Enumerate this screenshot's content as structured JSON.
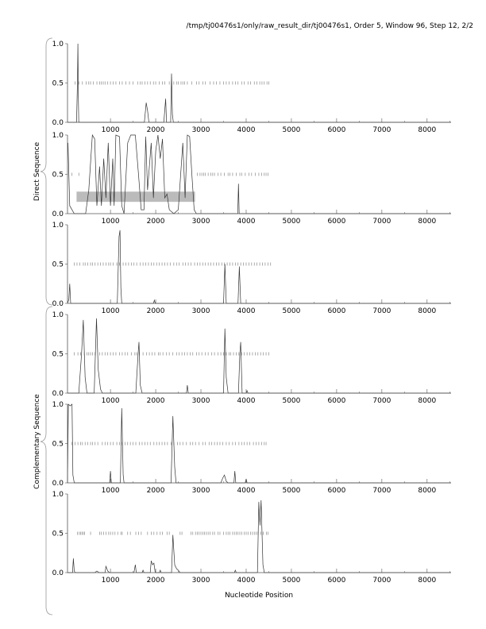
{
  "title": "/tmp/tj00476s1/only/raw_result_dir/tj00476s1, Order 5, Window 96, Step 12, 2/2",
  "xlabel": "Nucleotide Position",
  "group_labels": {
    "direct": "Direct Sequence",
    "complementary": "Complementary Sequence"
  },
  "chart_data": {
    "type": "line",
    "xlim": [
      50,
      8530
    ],
    "ylim": [
      0,
      1
    ],
    "xticks": [
      1000,
      2000,
      3000,
      4000,
      5000,
      6000,
      7000,
      8000
    ],
    "xtick_labels": [
      "1000",
      "2000",
      "3000",
      "4000",
      "5000",
      "6000",
      "7000",
      "8000"
    ],
    "yticks": [
      0,
      0.5,
      1
    ],
    "ytick_labels": [
      "0.0",
      "0.5",
      "1.0"
    ],
    "colors": {
      "line": "#333333",
      "ticks": "#888888",
      "band": "#bbbbbb",
      "axis": "#555555"
    },
    "panels": [
      {
        "group": "direct",
        "points": [
          [
            50,
            0
          ],
          [
            250,
            0
          ],
          [
            270,
            0.5
          ],
          [
            280,
            1.0
          ],
          [
            290,
            0.3
          ],
          [
            300,
            0
          ],
          [
            1750,
            0
          ],
          [
            1790,
            0.25
          ],
          [
            1820,
            0.15
          ],
          [
            1850,
            0
          ],
          [
            2180,
            0
          ],
          [
            2220,
            0.3
          ],
          [
            2240,
            0
          ],
          [
            2330,
            0
          ],
          [
            2350,
            0.62
          ],
          [
            2370,
            0.1
          ],
          [
            2390,
            0
          ],
          [
            8530,
            0
          ]
        ],
        "stops": [
          220,
          300,
          380,
          460,
          520,
          560,
          620,
          700,
          760,
          800,
          840,
          880,
          940,
          1000,
          1060,
          1120,
          1200,
          1260,
          1340,
          1420,
          1500,
          1600,
          1660,
          1700,
          1760,
          1820,
          1880,
          1950,
          2000,
          2080,
          2150,
          2200,
          2300,
          2400,
          2460,
          2500,
          2560,
          2600,
          2640,
          2700,
          2800,
          2900,
          2960,
          3040,
          3100,
          3200,
          3280,
          3340,
          3420,
          3500,
          3560,
          3620,
          3700,
          3760,
          3820,
          3900,
          3960,
          4040,
          4100,
          4180,
          4240,
          4300,
          4350,
          4400,
          4460,
          4500
        ]
      },
      {
        "group": "direct",
        "points": [
          [
            60,
            0.9
          ],
          [
            100,
            0.1
          ],
          [
            200,
            0
          ],
          [
            450,
            0
          ],
          [
            520,
            0.3
          ],
          [
            600,
            1.0
          ],
          [
            650,
            0.95
          ],
          [
            700,
            0.1
          ],
          [
            760,
            0.6
          ],
          [
            800,
            0.1
          ],
          [
            850,
            0.7
          ],
          [
            900,
            0.2
          ],
          [
            950,
            0.9
          ],
          [
            1000,
            0.1
          ],
          [
            1050,
            0.7
          ],
          [
            1080,
            0.1
          ],
          [
            1120,
            1.0
          ],
          [
            1200,
            0.98
          ],
          [
            1250,
            0.1
          ],
          [
            1300,
            0
          ],
          [
            1380,
            0.9
          ],
          [
            1450,
            1.0
          ],
          [
            1550,
            1.0
          ],
          [
            1620,
            0.5
          ],
          [
            1680,
            0.05
          ],
          [
            1740,
            0.05
          ],
          [
            1780,
            0.98
          ],
          [
            1820,
            0.3
          ],
          [
            1900,
            0.9
          ],
          [
            1950,
            0.2
          ],
          [
            2000,
            0.8
          ],
          [
            2050,
            1.0
          ],
          [
            2100,
            0.7
          ],
          [
            2150,
            0.95
          ],
          [
            2200,
            0.2
          ],
          [
            2250,
            0.25
          ],
          [
            2300,
            0.05
          ],
          [
            2400,
            0
          ],
          [
            2500,
            0.05
          ],
          [
            2600,
            0.9
          ],
          [
            2650,
            0.2
          ],
          [
            2700,
            1.0
          ],
          [
            2750,
            0.98
          ],
          [
            2800,
            0.5
          ],
          [
            2850,
            0.05
          ],
          [
            2900,
            0
          ],
          [
            3815,
            0
          ],
          [
            3830,
            0.38
          ],
          [
            3845,
            0
          ],
          [
            8530,
            0
          ]
        ],
        "band": [
          250,
          2870,
          0.15,
          0.28
        ],
        "stops": [
          150,
          300,
          2920,
          2980,
          3020,
          3060,
          3100,
          3160,
          3220,
          3260,
          3300,
          3380,
          3440,
          3520,
          3600,
          3640,
          3700,
          3780,
          3860,
          3900,
          3980,
          4060,
          4120,
          4200,
          4280,
          4340,
          4400,
          4440,
          4480
        ]
      },
      {
        "group": "direct",
        "points": [
          [
            50,
            0
          ],
          [
            80,
            0.05
          ],
          [
            100,
            0.25
          ],
          [
            120,
            0
          ],
          [
            1150,
            0
          ],
          [
            1190,
            0.85
          ],
          [
            1210,
            0.93
          ],
          [
            1230,
            0.2
          ],
          [
            1250,
            0
          ],
          [
            1950,
            0
          ],
          [
            1970,
            0.04
          ],
          [
            1990,
            0
          ],
          [
            3500,
            0
          ],
          [
            3530,
            0.5
          ],
          [
            3560,
            0
          ],
          [
            3820,
            0
          ],
          [
            3850,
            0.47
          ],
          [
            3880,
            0
          ],
          [
            8530,
            0
          ]
        ],
        "stops": [
          200,
          260,
          320,
          400,
          440,
          500,
          560,
          600,
          660,
          720,
          780,
          840,
          900,
          960,
          1000,
          1060,
          1140,
          1200,
          1280,
          1340,
          1400,
          1460,
          1520,
          1580,
          1660,
          1720,
          1780,
          1840,
          1900,
          1960,
          2020,
          2080,
          2140,
          2200,
          2260,
          2320,
          2400,
          2460,
          2520,
          2600,
          2660,
          2720,
          2780,
          2860,
          2920,
          2980,
          3040,
          3100,
          3160,
          3220,
          3280,
          3340,
          3400,
          3460,
          3520,
          3580,
          3640,
          3700,
          3760,
          3820,
          3880,
          3940,
          4000,
          4060,
          4120,
          4180,
          4240,
          4300,
          4360,
          4420,
          4480,
          4540
        ]
      },
      {
        "group": "complementary",
        "points": [
          [
            50,
            0
          ],
          [
            300,
            0
          ],
          [
            360,
            0.5
          ],
          [
            400,
            0.93
          ],
          [
            440,
            0.2
          ],
          [
            480,
            0
          ],
          [
            640,
            0
          ],
          [
            690,
            0.95
          ],
          [
            730,
            0.3
          ],
          [
            780,
            0.05
          ],
          [
            820,
            0
          ],
          [
            1560,
            0
          ],
          [
            1610,
            0.5
          ],
          [
            1630,
            0.65
          ],
          [
            1660,
            0.1
          ],
          [
            1700,
            0
          ],
          [
            2680,
            0
          ],
          [
            2700,
            0.1
          ],
          [
            2720,
            0
          ],
          [
            3500,
            0
          ],
          [
            3530,
            0.82
          ],
          [
            3560,
            0.2
          ],
          [
            3600,
            0
          ],
          [
            3830,
            0
          ],
          [
            3860,
            0.5
          ],
          [
            3880,
            0.65
          ],
          [
            3910,
            0
          ],
          [
            4000,
            0
          ],
          [
            4020,
            0.03
          ],
          [
            4040,
            0
          ],
          [
            8530,
            0
          ]
        ],
        "stops": [
          200,
          280,
          340,
          420,
          480,
          520,
          560,
          600,
          660,
          760,
          820,
          880,
          940,
          1000,
          1060,
          1120,
          1200,
          1260,
          1320,
          1380,
          1460,
          1540,
          1580,
          1640,
          1720,
          1800,
          1860,
          1920,
          1980,
          2060,
          2100,
          2160,
          2240,
          2300,
          2380,
          2460,
          2520,
          2580,
          2640,
          2700,
          2760,
          2820,
          2900,
          2960,
          3020,
          3100,
          3160,
          3240,
          3300,
          3380,
          3440,
          3500,
          3560,
          3620,
          3660,
          3720,
          3780,
          3840,
          3900,
          3960,
          4020,
          4080,
          4140,
          4200,
          4260,
          4320,
          4380,
          4440,
          4500
        ]
      },
      {
        "group": "complementary",
        "points": [
          [
            50,
            0
          ],
          [
            70,
            1.0
          ],
          [
            110,
            0.98
          ],
          [
            150,
            1.0
          ],
          [
            170,
            0.1
          ],
          [
            200,
            0
          ],
          [
            980,
            0
          ],
          [
            1000,
            0.15
          ],
          [
            1020,
            0
          ],
          [
            1220,
            0
          ],
          [
            1250,
            0.95
          ],
          [
            1280,
            0.1
          ],
          [
            1300,
            0
          ],
          [
            2340,
            0
          ],
          [
            2380,
            0.85
          ],
          [
            2420,
            0.2
          ],
          [
            2450,
            0
          ],
          [
            3440,
            0
          ],
          [
            3480,
            0.06
          ],
          [
            3520,
            0.1
          ],
          [
            3560,
            0.02
          ],
          [
            3600,
            0
          ],
          [
            3730,
            0
          ],
          [
            3750,
            0.15
          ],
          [
            3770,
            0
          ],
          [
            3980,
            0
          ],
          [
            4000,
            0.05
          ],
          [
            4020,
            0
          ],
          [
            8530,
            0
          ]
        ],
        "stops": [
          150,
          220,
          280,
          340,
          380,
          440,
          500,
          560,
          600,
          660,
          720,
          820,
          880,
          940,
          1000,
          1060,
          1140,
          1200,
          1260,
          1320,
          1380,
          1440,
          1500,
          1560,
          1640,
          1700,
          1760,
          1820,
          1880,
          1960,
          2020,
          2080,
          2140,
          2200,
          2260,
          2340,
          2400,
          2480,
          2540,
          2600,
          2680,
          2760,
          2820,
          2880,
          2960,
          3040,
          3100,
          3180,
          3240,
          3300,
          3360,
          3420,
          3480,
          3560,
          3620,
          3700,
          3760,
          3840,
          3900,
          3960,
          4020,
          4080,
          4160,
          4220,
          4280,
          4340,
          4400,
          4440
        ]
      },
      {
        "group": "complementary",
        "points": [
          [
            50,
            0
          ],
          [
            160,
            0
          ],
          [
            180,
            0.18
          ],
          [
            200,
            0.02
          ],
          [
            220,
            0
          ],
          [
            650,
            0
          ],
          [
            700,
            0.02
          ],
          [
            750,
            0
          ],
          [
            880,
            0
          ],
          [
            900,
            0.08
          ],
          [
            940,
            0.02
          ],
          [
            980,
            0
          ],
          [
            1520,
            0
          ],
          [
            1550,
            0.1
          ],
          [
            1570,
            0
          ],
          [
            1700,
            0
          ],
          [
            1720,
            0.03
          ],
          [
            1740,
            0
          ],
          [
            1880,
            0
          ],
          [
            1900,
            0.15
          ],
          [
            1930,
            0.1
          ],
          [
            1960,
            0.12
          ],
          [
            1990,
            0
          ],
          [
            2080,
            0
          ],
          [
            2100,
            0.03
          ],
          [
            2120,
            0
          ],
          [
            2350,
            0
          ],
          [
            2380,
            0.48
          ],
          [
            2420,
            0.1
          ],
          [
            2460,
            0.05
          ],
          [
            2500,
            0.03
          ],
          [
            2540,
            0
          ],
          [
            3740,
            0
          ],
          [
            3760,
            0.03
          ],
          [
            3780,
            0
          ],
          [
            4250,
            0
          ],
          [
            4280,
            0.9
          ],
          [
            4305,
            0.6
          ],
          [
            4330,
            0.92
          ],
          [
            4370,
            0.1
          ],
          [
            4400,
            0
          ],
          [
            8530,
            0
          ]
        ],
        "stops": [
          270,
          310,
          340,
          370,
          400,
          430,
          560,
          760,
          800,
          850,
          900,
          960,
          1000,
          1050,
          1100,
          1160,
          1230,
          1260,
          1380,
          1440,
          1560,
          1620,
          1680,
          1820,
          1900,
          1960,
          2030,
          2100,
          2150,
          2250,
          2300,
          2540,
          2580,
          2780,
          2820,
          2880,
          2920,
          2960,
          3000,
          3040,
          3080,
          3120,
          3160,
          3200,
          3260,
          3300,
          3380,
          3420,
          3500,
          3560,
          3600,
          3640,
          3700,
          3740,
          3780,
          3820,
          3860,
          3900,
          3960,
          4000,
          4040,
          4100,
          4140,
          4180,
          4220,
          4260,
          4320,
          4380,
          4450,
          4480
        ]
      }
    ]
  }
}
